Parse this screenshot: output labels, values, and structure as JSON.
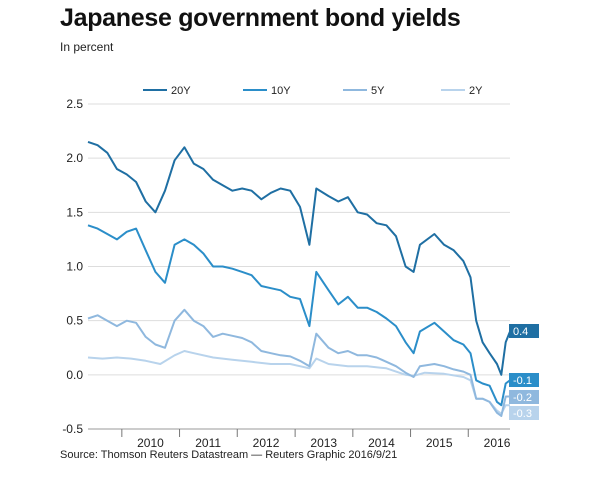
{
  "header": {
    "title": "Japanese government bond yields",
    "subtitle": "In percent"
  },
  "footer": {
    "source": "Source: Thomson Reuters Datastream — Reuters Graphic 2016/9/21"
  },
  "chart_data": {
    "type": "line",
    "title": "Japanese government bond yields",
    "subtitle": "In percent",
    "xlabel": "",
    "ylabel": "",
    "ylim": [
      -0.5,
      2.5
    ],
    "xlim": [
      "2009-06-01",
      "2016-09-21"
    ],
    "y_ticks": [
      "2.5",
      "2.0",
      "1.5",
      "1.0",
      "0.5",
      "0.0",
      "-0.5"
    ],
    "x_ticks": [
      "2010",
      "2011",
      "2012",
      "2013",
      "2014",
      "2015",
      "2016"
    ],
    "grid": "horizontal",
    "legend_position": "top",
    "series": [
      {
        "name": "20Y",
        "color": "#1f6fa3",
        "end_label": "0.4",
        "points": [
          [
            "2009-06-01",
            2.15
          ],
          [
            "2009-08-01",
            2.12
          ],
          [
            "2009-10-01",
            2.05
          ],
          [
            "2009-12-01",
            1.9
          ],
          [
            "2010-02-01",
            1.85
          ],
          [
            "2010-04-01",
            1.78
          ],
          [
            "2010-06-01",
            1.6
          ],
          [
            "2010-08-01",
            1.5
          ],
          [
            "2010-10-01",
            1.7
          ],
          [
            "2010-12-01",
            1.98
          ],
          [
            "2011-02-01",
            2.1
          ],
          [
            "2011-04-01",
            1.95
          ],
          [
            "2011-06-01",
            1.9
          ],
          [
            "2011-08-01",
            1.8
          ],
          [
            "2011-10-01",
            1.75
          ],
          [
            "2011-12-01",
            1.7
          ],
          [
            "2012-02-01",
            1.72
          ],
          [
            "2012-04-01",
            1.7
          ],
          [
            "2012-06-01",
            1.62
          ],
          [
            "2012-08-01",
            1.68
          ],
          [
            "2012-10-01",
            1.72
          ],
          [
            "2012-12-01",
            1.7
          ],
          [
            "2013-02-01",
            1.55
          ],
          [
            "2013-04-01",
            1.2
          ],
          [
            "2013-05-15",
            1.72
          ],
          [
            "2013-08-01",
            1.65
          ],
          [
            "2013-10-01",
            1.6
          ],
          [
            "2013-12-01",
            1.64
          ],
          [
            "2014-02-01",
            1.5
          ],
          [
            "2014-04-01",
            1.48
          ],
          [
            "2014-06-01",
            1.4
          ],
          [
            "2014-08-01",
            1.38
          ],
          [
            "2014-10-01",
            1.28
          ],
          [
            "2014-12-01",
            1.0
          ],
          [
            "2015-01-20",
            0.95
          ],
          [
            "2015-03-01",
            1.2
          ],
          [
            "2015-06-01",
            1.3
          ],
          [
            "2015-08-01",
            1.2
          ],
          [
            "2015-10-01",
            1.15
          ],
          [
            "2015-12-01",
            1.05
          ],
          [
            "2016-01-15",
            0.9
          ],
          [
            "2016-02-20",
            0.5
          ],
          [
            "2016-04-01",
            0.3
          ],
          [
            "2016-05-15",
            0.2
          ],
          [
            "2016-07-01",
            0.1
          ],
          [
            "2016-07-28",
            0.0
          ],
          [
            "2016-08-25",
            0.3
          ],
          [
            "2016-09-21",
            0.4
          ]
        ]
      },
      {
        "name": "10Y",
        "color": "#2b8ec9",
        "end_label": "-0.1",
        "points": [
          [
            "2009-06-01",
            1.38
          ],
          [
            "2009-08-01",
            1.35
          ],
          [
            "2009-10-01",
            1.3
          ],
          [
            "2009-12-01",
            1.25
          ],
          [
            "2010-02-01",
            1.32
          ],
          [
            "2010-04-01",
            1.35
          ],
          [
            "2010-06-01",
            1.15
          ],
          [
            "2010-08-01",
            0.95
          ],
          [
            "2010-10-01",
            0.85
          ],
          [
            "2010-12-01",
            1.2
          ],
          [
            "2011-02-01",
            1.25
          ],
          [
            "2011-04-01",
            1.2
          ],
          [
            "2011-06-01",
            1.12
          ],
          [
            "2011-08-01",
            1.0
          ],
          [
            "2011-10-01",
            1.0
          ],
          [
            "2011-12-01",
            0.98
          ],
          [
            "2012-02-01",
            0.95
          ],
          [
            "2012-04-01",
            0.92
          ],
          [
            "2012-06-01",
            0.82
          ],
          [
            "2012-08-01",
            0.8
          ],
          [
            "2012-10-01",
            0.78
          ],
          [
            "2012-12-01",
            0.72
          ],
          [
            "2013-02-01",
            0.7
          ],
          [
            "2013-04-01",
            0.45
          ],
          [
            "2013-05-15",
            0.95
          ],
          [
            "2013-08-01",
            0.78
          ],
          [
            "2013-10-01",
            0.65
          ],
          [
            "2013-12-01",
            0.72
          ],
          [
            "2014-02-01",
            0.62
          ],
          [
            "2014-04-01",
            0.62
          ],
          [
            "2014-06-01",
            0.58
          ],
          [
            "2014-08-01",
            0.52
          ],
          [
            "2014-10-01",
            0.45
          ],
          [
            "2014-12-01",
            0.3
          ],
          [
            "2015-01-20",
            0.2
          ],
          [
            "2015-03-01",
            0.4
          ],
          [
            "2015-06-01",
            0.48
          ],
          [
            "2015-08-01",
            0.4
          ],
          [
            "2015-10-01",
            0.32
          ],
          [
            "2015-12-01",
            0.28
          ],
          [
            "2016-01-15",
            0.2
          ],
          [
            "2016-02-20",
            -0.05
          ],
          [
            "2016-04-01",
            -0.08
          ],
          [
            "2016-05-15",
            -0.1
          ],
          [
            "2016-07-01",
            -0.25
          ],
          [
            "2016-07-28",
            -0.28
          ],
          [
            "2016-08-25",
            -0.08
          ],
          [
            "2016-09-21",
            -0.05
          ]
        ]
      },
      {
        "name": "5Y",
        "color": "#8fb8de",
        "end_label": "-0.2",
        "points": [
          [
            "2009-06-01",
            0.52
          ],
          [
            "2009-08-01",
            0.55
          ],
          [
            "2009-10-01",
            0.5
          ],
          [
            "2009-12-01",
            0.45
          ],
          [
            "2010-02-01",
            0.5
          ],
          [
            "2010-04-01",
            0.48
          ],
          [
            "2010-06-01",
            0.35
          ],
          [
            "2010-08-01",
            0.28
          ],
          [
            "2010-10-01",
            0.25
          ],
          [
            "2010-12-01",
            0.5
          ],
          [
            "2011-02-01",
            0.6
          ],
          [
            "2011-04-01",
            0.5
          ],
          [
            "2011-06-01",
            0.45
          ],
          [
            "2011-08-01",
            0.35
          ],
          [
            "2011-10-01",
            0.38
          ],
          [
            "2011-12-01",
            0.36
          ],
          [
            "2012-02-01",
            0.34
          ],
          [
            "2012-04-01",
            0.3
          ],
          [
            "2012-06-01",
            0.22
          ],
          [
            "2012-08-01",
            0.2
          ],
          [
            "2012-10-01",
            0.18
          ],
          [
            "2012-12-01",
            0.17
          ],
          [
            "2013-02-01",
            0.13
          ],
          [
            "2013-04-01",
            0.08
          ],
          [
            "2013-05-15",
            0.38
          ],
          [
            "2013-08-01",
            0.25
          ],
          [
            "2013-10-01",
            0.2
          ],
          [
            "2013-12-01",
            0.22
          ],
          [
            "2014-02-01",
            0.18
          ],
          [
            "2014-04-01",
            0.18
          ],
          [
            "2014-06-01",
            0.16
          ],
          [
            "2014-08-01",
            0.12
          ],
          [
            "2014-10-01",
            0.08
          ],
          [
            "2014-12-01",
            0.02
          ],
          [
            "2015-01-20",
            -0.02
          ],
          [
            "2015-03-01",
            0.08
          ],
          [
            "2015-06-01",
            0.1
          ],
          [
            "2015-08-01",
            0.08
          ],
          [
            "2015-10-01",
            0.05
          ],
          [
            "2015-12-01",
            0.03
          ],
          [
            "2016-01-15",
            0.0
          ],
          [
            "2016-02-20",
            -0.22
          ],
          [
            "2016-04-01",
            -0.22
          ],
          [
            "2016-05-15",
            -0.25
          ],
          [
            "2016-07-01",
            -0.35
          ],
          [
            "2016-07-28",
            -0.38
          ],
          [
            "2016-08-25",
            -0.2
          ],
          [
            "2016-09-21",
            -0.2
          ]
        ]
      },
      {
        "name": "2Y",
        "color": "#b8d3ec",
        "end_label": "-0.3",
        "points": [
          [
            "2009-06-01",
            0.16
          ],
          [
            "2009-09-01",
            0.15
          ],
          [
            "2009-12-01",
            0.16
          ],
          [
            "2010-03-01",
            0.15
          ],
          [
            "2010-06-01",
            0.13
          ],
          [
            "2010-09-01",
            0.1
          ],
          [
            "2010-12-01",
            0.18
          ],
          [
            "2011-02-01",
            0.22
          ],
          [
            "2011-04-01",
            0.2
          ],
          [
            "2011-08-01",
            0.16
          ],
          [
            "2011-12-01",
            0.14
          ],
          [
            "2012-04-01",
            0.12
          ],
          [
            "2012-08-01",
            0.1
          ],
          [
            "2012-12-01",
            0.1
          ],
          [
            "2013-04-01",
            0.06
          ],
          [
            "2013-05-15",
            0.15
          ],
          [
            "2013-08-01",
            0.1
          ],
          [
            "2013-12-01",
            0.08
          ],
          [
            "2014-04-01",
            0.08
          ],
          [
            "2014-08-01",
            0.06
          ],
          [
            "2014-12-01",
            0.0
          ],
          [
            "2015-01-20",
            -0.01
          ],
          [
            "2015-04-01",
            0.02
          ],
          [
            "2015-08-01",
            0.01
          ],
          [
            "2015-12-01",
            -0.02
          ],
          [
            "2016-01-15",
            -0.05
          ],
          [
            "2016-02-20",
            -0.22
          ],
          [
            "2016-04-01",
            -0.22
          ],
          [
            "2016-05-15",
            -0.25
          ],
          [
            "2016-07-01",
            -0.33
          ],
          [
            "2016-07-28",
            -0.36
          ],
          [
            "2016-08-25",
            -0.28
          ],
          [
            "2016-09-21",
            -0.28
          ]
        ]
      }
    ]
  }
}
